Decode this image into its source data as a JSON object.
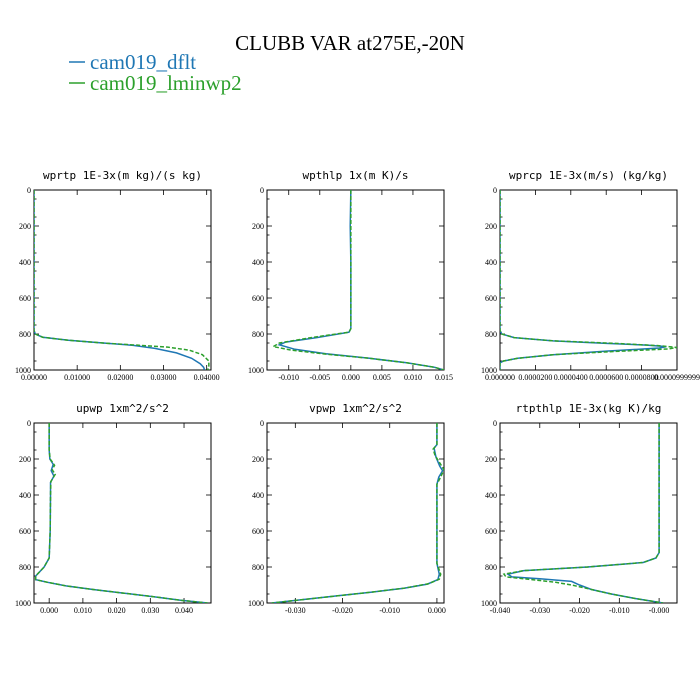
{
  "title": "CLUBB VAR at275E,-20N",
  "colors": {
    "dflt": "#1f77b4",
    "lminwp2": "#2ca02c"
  },
  "legend": [
    {
      "label": "cam019_dflt",
      "color": "#1f77b4",
      "dash": "solid"
    },
    {
      "label": "cam019_lminwp2",
      "color": "#2ca02c",
      "dash": "dashed"
    }
  ],
  "chart_data": [
    {
      "type": "line",
      "title": "wprtp  1E-3x(m kg)/(s kg)",
      "xlim": [
        0,
        0.041
      ],
      "ylim": [
        1000,
        0
      ],
      "y_inverted": true,
      "xticks": [
        0,
        0.01,
        0.02,
        0.03,
        0.04
      ],
      "xtick_labels": [
        "0.00000",
        "0.01000",
        "0.02000",
        "0.03000",
        "0.04000"
      ],
      "yticks": [
        0,
        200,
        400,
        600,
        800,
        1000
      ],
      "ytick_labels": [
        "0",
        "200",
        "400",
        "600",
        "800",
        "1000"
      ],
      "series": [
        {
          "name": "cam019_dflt",
          "points": [
            [
              0,
              0
            ],
            [
              0,
              400
            ],
            [
              0,
              780
            ],
            [
              0.0003,
              800
            ],
            [
              0.002,
              818
            ],
            [
              0.008,
              835
            ],
            [
              0.016,
              850
            ],
            [
              0.023,
              863
            ],
            [
              0.028,
              880
            ],
            [
              0.033,
              905
            ],
            [
              0.0365,
              935
            ],
            [
              0.0385,
              965
            ],
            [
              0.0393,
              985
            ],
            [
              0.0395,
              1000
            ]
          ]
        },
        {
          "name": "cam019_lminwp2",
          "points": [
            [
              0,
              0
            ],
            [
              0,
              400
            ],
            [
              0,
              780
            ],
            [
              0.0003,
              800
            ],
            [
              0.002,
              818
            ],
            [
              0.008,
              835
            ],
            [
              0.016,
              850
            ],
            [
              0.024,
              862
            ],
            [
              0.031,
              873
            ],
            [
              0.036,
              890
            ],
            [
              0.039,
              915
            ],
            [
              0.0405,
              950
            ],
            [
              0.0405,
              985
            ],
            [
              0.0402,
              1000
            ]
          ]
        }
      ]
    },
    {
      "type": "line",
      "title": "wpthlp  1x(m K)/s",
      "xlim": [
        -0.0135,
        0.015
      ],
      "ylim": [
        1000,
        0
      ],
      "y_inverted": true,
      "xticks": [
        -0.01,
        -0.005,
        0,
        0.005,
        0.01,
        0.015
      ],
      "xtick_labels": [
        "-0.010",
        "-0.005",
        "0.000",
        "0.005",
        "0.010",
        "0.015"
      ],
      "yticks": [
        0,
        200,
        400,
        600,
        800,
        1000
      ],
      "ytick_labels": [
        "0",
        "200",
        "400",
        "600",
        "800",
        "1000"
      ],
      "series": [
        {
          "name": "cam019_dflt",
          "points": [
            [
              0,
              0
            ],
            [
              -0.0001,
              200
            ],
            [
              0,
              400
            ],
            [
              0,
              600
            ],
            [
              0,
              770
            ],
            [
              -0.0003,
              790
            ],
            [
              -0.0055,
              820
            ],
            [
              -0.0105,
              845
            ],
            [
              -0.0115,
              860
            ],
            [
              -0.009,
              885
            ],
            [
              -0.004,
              910
            ],
            [
              0.003,
              935
            ],
            [
              0.009,
              960
            ],
            [
              0.0135,
              985
            ],
            [
              0.015,
              1000
            ]
          ]
        },
        {
          "name": "cam019_lminwp2",
          "points": [
            [
              0,
              0
            ],
            [
              0,
              200
            ],
            [
              0,
              400
            ],
            [
              0,
              600
            ],
            [
              0,
              770
            ],
            [
              -0.0003,
              790
            ],
            [
              -0.006,
              818
            ],
            [
              -0.0115,
              850
            ],
            [
              -0.0125,
              870
            ],
            [
              -0.0095,
              890
            ],
            [
              -0.004,
              912
            ],
            [
              0.003,
              935
            ],
            [
              0.009,
              960
            ],
            [
              0.0135,
              985
            ],
            [
              0.015,
              1000
            ]
          ]
        }
      ]
    },
    {
      "type": "line",
      "title": "wprcp  1E-3x(m/s) (kg/kg)",
      "xlim": [
        0,
        0.0001
      ],
      "ylim": [
        1000,
        0
      ],
      "y_inverted": true,
      "xticks": [
        0,
        2e-05,
        4e-05,
        6e-05,
        8e-05,
        0.0001
      ],
      "xtick_labels": [
        "0.000000",
        "0.0000200",
        "0.0000400",
        "0.0000600",
        "0.0000800",
        "0.0000999999"
      ],
      "yticks": [
        0,
        200,
        400,
        600,
        800,
        1000
      ],
      "ytick_labels": [
        "0",
        "200",
        "400",
        "600",
        "800",
        "1000"
      ],
      "series": [
        {
          "name": "cam019_dflt",
          "points": [
            [
              0,
              0
            ],
            [
              0,
              780
            ],
            [
              1e-06,
              800
            ],
            [
              8e-06,
              820
            ],
            [
              3e-05,
              838
            ],
            [
              6e-05,
              852
            ],
            [
              8.3e-05,
              862
            ],
            [
              9.4e-05,
              870
            ],
            [
              9e-05,
              878
            ],
            [
              6e-05,
              895
            ],
            [
              3e-05,
              915
            ],
            [
              1e-05,
              935
            ],
            [
              2e-06,
              950
            ],
            [
              0,
              960
            ],
            [
              0,
              1000
            ]
          ]
        },
        {
          "name": "cam019_lminwp2",
          "points": [
            [
              0,
              0
            ],
            [
              0,
              780
            ],
            [
              1e-06,
              800
            ],
            [
              8e-06,
              820
            ],
            [
              3e-05,
              838
            ],
            [
              6.5e-05,
              852
            ],
            [
              9e-05,
              865
            ],
            [
              0.0001,
              875
            ],
            [
              9.5e-05,
              883
            ],
            [
              6.5e-05,
              897
            ],
            [
              3e-05,
              915
            ],
            [
              1e-05,
              935
            ],
            [
              2e-06,
              950
            ],
            [
              0,
              962
            ],
            [
              0,
              1000
            ]
          ]
        }
      ]
    },
    {
      "type": "line",
      "title": "upwp  1xm^2/s^2",
      "xlim": [
        -0.0045,
        0.048
      ],
      "ylim": [
        1000,
        0
      ],
      "y_inverted": true,
      "xticks": [
        0,
        0.01,
        0.02,
        0.03,
        0.04
      ],
      "xtick_labels": [
        "0.000",
        "0.010",
        "0.020",
        "0.030",
        "0.040"
      ],
      "yticks": [
        0,
        200,
        400,
        600,
        800,
        1000
      ],
      "ytick_labels": [
        "0",
        "200",
        "400",
        "600",
        "800",
        "1000"
      ],
      "series": [
        {
          "name": "cam019_dflt",
          "points": [
            [
              0,
              0
            ],
            [
              0,
              150
            ],
            [
              0.0002,
              200
            ],
            [
              0.0012,
              230
            ],
            [
              0.0006,
              265
            ],
            [
              0.0014,
              295
            ],
            [
              0.0004,
              330
            ],
            [
              0.0004,
              400
            ],
            [
              0.0003,
              600
            ],
            [
              0,
              750
            ],
            [
              -0.0015,
              800
            ],
            [
              -0.004,
              850
            ],
            [
              -0.004,
              870
            ],
            [
              -0.0005,
              885
            ],
            [
              0.005,
              905
            ],
            [
              0.013,
              925
            ],
            [
              0.022,
              945
            ],
            [
              0.031,
              965
            ],
            [
              0.039,
              985
            ],
            [
              0.047,
              1000
            ]
          ]
        },
        {
          "name": "cam019_lminwp2",
          "points": [
            [
              0,
              0
            ],
            [
              0,
              150
            ],
            [
              0.0003,
              200
            ],
            [
              0.0016,
              235
            ],
            [
              0.0009,
              260
            ],
            [
              0.0018,
              285
            ],
            [
              0.0005,
              325
            ],
            [
              0.0004,
              400
            ],
            [
              0.0003,
              600
            ],
            [
              0,
              750
            ],
            [
              -0.0015,
              800
            ],
            [
              -0.004,
              850
            ],
            [
              -0.004,
              870
            ],
            [
              -0.0005,
              885
            ],
            [
              0.005,
              905
            ],
            [
              0.013,
              925
            ],
            [
              0.022,
              945
            ],
            [
              0.031,
              965
            ],
            [
              0.039,
              985
            ],
            [
              0.047,
              1000
            ]
          ]
        }
      ]
    },
    {
      "type": "line",
      "title": "vpwp  1xm^2/s^2",
      "xlim": [
        -0.036,
        0.0015
      ],
      "ylim": [
        1000,
        0
      ],
      "y_inverted": true,
      "xticks": [
        -0.03,
        -0.02,
        -0.01,
        0
      ],
      "xtick_labels": [
        "-0.030",
        "-0.020",
        "-0.010",
        "0.000"
      ],
      "yticks": [
        0,
        200,
        400,
        600,
        800,
        1000
      ],
      "ytick_labels": [
        "0",
        "200",
        "400",
        "600",
        "800",
        "1000"
      ],
      "series": [
        {
          "name": "cam019_dflt",
          "points": [
            [
              0,
              0
            ],
            [
              0,
              120
            ],
            [
              -0.0006,
              140
            ],
            [
              -0.0002,
              190
            ],
            [
              0.0006,
              240
            ],
            [
              0.0012,
              265
            ],
            [
              0.0004,
              300
            ],
            [
              0,
              340
            ],
            [
              0,
              600
            ],
            [
              0,
              780
            ],
            [
              0.0005,
              840
            ],
            [
              0.0002,
              870
            ],
            [
              -0.002,
              895
            ],
            [
              -0.007,
              918
            ],
            [
              -0.014,
              940
            ],
            [
              -0.021,
              960
            ],
            [
              -0.028,
              980
            ],
            [
              -0.035,
              1000
            ]
          ]
        },
        {
          "name": "cam019_lminwp2",
          "points": [
            [
              0,
              0
            ],
            [
              0,
              120
            ],
            [
              -0.0008,
              145
            ],
            [
              -0.0004,
              180
            ],
            [
              0.0008,
              230
            ],
            [
              0.0015,
              260
            ],
            [
              0.0007,
              305
            ],
            [
              0,
              340
            ],
            [
              0,
              600
            ],
            [
              0,
              780
            ],
            [
              0.0008,
              840
            ],
            [
              0.0005,
              868
            ],
            [
              -0.0018,
              893
            ],
            [
              -0.0068,
              917
            ],
            [
              -0.014,
              940
            ],
            [
              -0.021,
              960
            ],
            [
              -0.028,
              980
            ],
            [
              -0.035,
              1000
            ]
          ]
        }
      ]
    },
    {
      "type": "line",
      "title": "rtpthlp  1E-3x(kg K)/kg",
      "xlim": [
        -0.04,
        0.0045
      ],
      "ylim": [
        1000,
        0
      ],
      "y_inverted": true,
      "xticks": [
        -0.04,
        -0.03,
        -0.02,
        -0.01,
        0
      ],
      "xtick_labels": [
        "-0.040",
        "-0.030",
        "-0.020",
        "-0.010",
        "-0.000"
      ],
      "yticks": [
        0,
        200,
        400,
        600,
        800,
        1000
      ],
      "ytick_labels": [
        "0",
        "200",
        "400",
        "600",
        "800",
        "1000"
      ],
      "series": [
        {
          "name": "cam019_dflt",
          "points": [
            [
              0,
              0
            ],
            [
              0,
              400
            ],
            [
              0,
              720
            ],
            [
              -0.0008,
              750
            ],
            [
              -0.004,
              775
            ],
            [
              -0.018,
              800
            ],
            [
              -0.034,
              820
            ],
            [
              -0.038,
              840
            ],
            [
              -0.037,
              855
            ],
            [
              -0.03,
              865
            ],
            [
              -0.022,
              880
            ],
            [
              -0.02,
              900
            ],
            [
              -0.017,
              925
            ],
            [
              -0.012,
              950
            ],
            [
              -0.006,
              975
            ],
            [
              0.001,
              1000
            ]
          ]
        },
        {
          "name": "cam019_lminwp2",
          "points": [
            [
              0,
              0
            ],
            [
              0,
              400
            ],
            [
              0,
              720
            ],
            [
              -0.0008,
              750
            ],
            [
              -0.004,
              775
            ],
            [
              -0.018,
              800
            ],
            [
              -0.034,
              820
            ],
            [
              -0.039,
              840
            ],
            [
              -0.0385,
              855
            ],
            [
              -0.032,
              870
            ],
            [
              -0.026,
              885
            ],
            [
              -0.022,
              900
            ],
            [
              -0.017,
              925
            ],
            [
              -0.012,
              950
            ],
            [
              -0.006,
              975
            ],
            [
              0.001,
              1000
            ]
          ]
        }
      ]
    }
  ]
}
